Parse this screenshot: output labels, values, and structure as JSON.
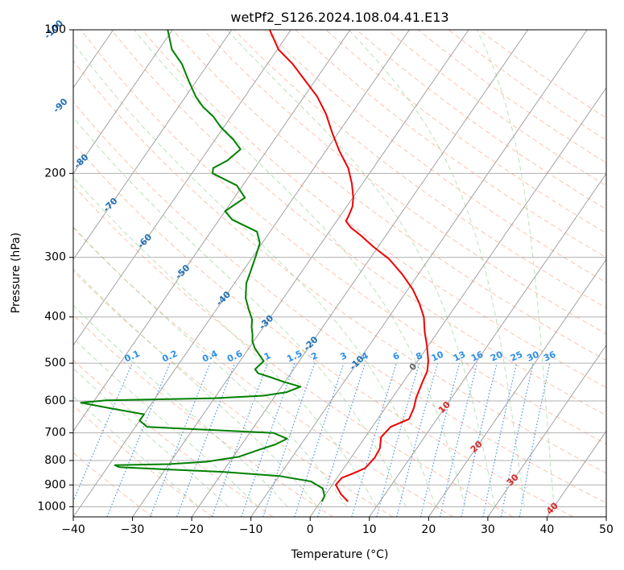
{
  "chart_data": {
    "type": "line",
    "diagram": "skew-T log-P",
    "title": "wetPf2_S126.2024.108.04.41.E13",
    "xlabel": "Temperature (°C)",
    "ylabel": "Pressure (hPa)",
    "xlim": [
      -40,
      50
    ],
    "ylim": [
      1050,
      100
    ],
    "y_scale": "log",
    "x_ticks": [
      -40,
      -30,
      -20,
      -10,
      0,
      10,
      20,
      30,
      40,
      50
    ],
    "x_tick_labels": [
      "−40",
      "−30",
      "−20",
      "−10",
      "0",
      "10",
      "20",
      "30",
      "40",
      "50"
    ],
    "y_ticks": [
      1000,
      900,
      800,
      700,
      600,
      500,
      400,
      300,
      200,
      100
    ],
    "y_tick_labels": [
      "1000",
      "900",
      "800",
      "700",
      "600",
      "500",
      "400",
      "300",
      "200",
      "100"
    ],
    "grid": true,
    "colors": {
      "temperature": "#ee0000",
      "dewpoint": "#008000",
      "isotherm": "#999999",
      "dry_adiabat": "#f4a582",
      "moist_adiabat": "#a6d7a0",
      "mixing_ratio": "#4a90e2",
      "iso_label_blue": "#1f6fb4",
      "iso_label_red": "#d62728",
      "mixing_label": "#2e8fe8"
    },
    "series": [
      {
        "key": "temperature",
        "points": [
          [
            4.6,
            975
          ],
          [
            2.5,
            940
          ],
          [
            0.6,
            900
          ],
          [
            0.8,
            870
          ],
          [
            2.3,
            850
          ],
          [
            3.6,
            830
          ],
          [
            4.0,
            790
          ],
          [
            3.8,
            755
          ],
          [
            2.7,
            715
          ],
          [
            3.1,
            680
          ],
          [
            5.3,
            655
          ],
          [
            4.8,
            620
          ],
          [
            4.0,
            590
          ],
          [
            3.2,
            545
          ],
          [
            2.8,
            520
          ],
          [
            1.8,
            495
          ],
          [
            -0.2,
            460
          ],
          [
            -2.2,
            430
          ],
          [
            -4.1,
            400
          ],
          [
            -6.4,
            375
          ],
          [
            -9.2,
            350
          ],
          [
            -12.8,
            325
          ],
          [
            -16.8,
            302
          ],
          [
            -20.8,
            285
          ],
          [
            -24.2,
            270
          ],
          [
            -26.8,
            260
          ],
          [
            -28.4,
            252
          ],
          [
            -28.6,
            245
          ],
          [
            -29.0,
            235
          ],
          [
            -29.9,
            225
          ],
          [
            -31.8,
            210
          ],
          [
            -34.2,
            195
          ],
          [
            -37.6,
            180
          ],
          [
            -40.9,
            165
          ],
          [
            -44.3,
            150
          ],
          [
            -47.8,
            138
          ],
          [
            -51.6,
            128
          ],
          [
            -55.7,
            118
          ],
          [
            -59.8,
            110
          ],
          [
            -63.6,
            100
          ]
        ]
      },
      {
        "key": "dewpoint",
        "points": [
          [
            0.2,
            975
          ],
          [
            0.0,
            950
          ],
          [
            -1.2,
            915
          ],
          [
            -4.0,
            885
          ],
          [
            -10.0,
            862
          ],
          [
            -20.0,
            845
          ],
          [
            -30.0,
            835
          ],
          [
            -38.0,
            826
          ],
          [
            -39.0,
            818
          ],
          [
            -30.0,
            814
          ],
          [
            -24.0,
            805
          ],
          [
            -19.0,
            785
          ],
          [
            -16.5,
            760
          ],
          [
            -14.3,
            740
          ],
          [
            -13.0,
            720
          ],
          [
            -16.0,
            700
          ],
          [
            -27.0,
            690
          ],
          [
            -38.0,
            680
          ],
          [
            -40.0,
            660
          ],
          [
            -40.0,
            640
          ],
          [
            -47.0,
            620
          ],
          [
            -52.0,
            605
          ],
          [
            -48.0,
            598
          ],
          [
            -30.0,
            592
          ],
          [
            -22.0,
            585
          ],
          [
            -18.5,
            575
          ],
          [
            -16.8,
            560
          ],
          [
            -20.0,
            548
          ],
          [
            -23.0,
            535
          ],
          [
            -25.5,
            525
          ],
          [
            -26.5,
            515
          ],
          [
            -26.0,
            495
          ],
          [
            -27.5,
            480
          ],
          [
            -29.0,
            465
          ],
          [
            -30.2,
            450
          ],
          [
            -31.0,
            435
          ],
          [
            -32.0,
            420
          ],
          [
            -32.8,
            405
          ],
          [
            -34.6,
            385
          ],
          [
            -36.4,
            365
          ],
          [
            -38.0,
            340
          ],
          [
            -38.7,
            320
          ],
          [
            -39.7,
            295
          ],
          [
            -40.4,
            280
          ],
          [
            -42.2,
            265
          ],
          [
            -47.8,
            250
          ],
          [
            -50.0,
            240
          ],
          [
            -48.2,
            225
          ],
          [
            -51.0,
            212
          ],
          [
            -56.5,
            200
          ],
          [
            -57.0,
            195
          ],
          [
            -55.5,
            188
          ],
          [
            -54.6,
            178
          ],
          [
            -56.9,
            170
          ],
          [
            -60.5,
            160
          ],
          [
            -63.0,
            152
          ],
          [
            -65.9,
            145
          ],
          [
            -68.3,
            138
          ],
          [
            -71.3,
            128
          ],
          [
            -74.4,
            118
          ],
          [
            -77.8,
            110
          ],
          [
            -80.8,
            100
          ]
        ]
      }
    ],
    "isotherm_labels": [
      {
        "text": "-100",
        "value": -100
      },
      {
        "text": "-90",
        "value": -90
      },
      {
        "text": "-80",
        "value": -80
      },
      {
        "text": "-70",
        "value": -70
      },
      {
        "text": "-60",
        "value": -60
      },
      {
        "text": "-50",
        "value": -50
      },
      {
        "text": "-40",
        "value": -40
      },
      {
        "text": "-30",
        "value": -30
      },
      {
        "text": "-20",
        "value": -20
      },
      {
        "text": "-10",
        "value": -10
      },
      {
        "text": "0",
        "value": 0
      },
      {
        "text": "10",
        "value": 10
      },
      {
        "text": "20",
        "value": 20
      },
      {
        "text": "30",
        "value": 30
      },
      {
        "text": "40",
        "value": 40
      }
    ],
    "mixing_ratio_labels": [
      "0.1",
      "0.2",
      "0.4",
      "0.6",
      "1",
      "1.5",
      "2",
      "3",
      "4",
      "6",
      "8",
      "10",
      "13",
      "16",
      "20",
      "25",
      "30",
      "36"
    ]
  }
}
